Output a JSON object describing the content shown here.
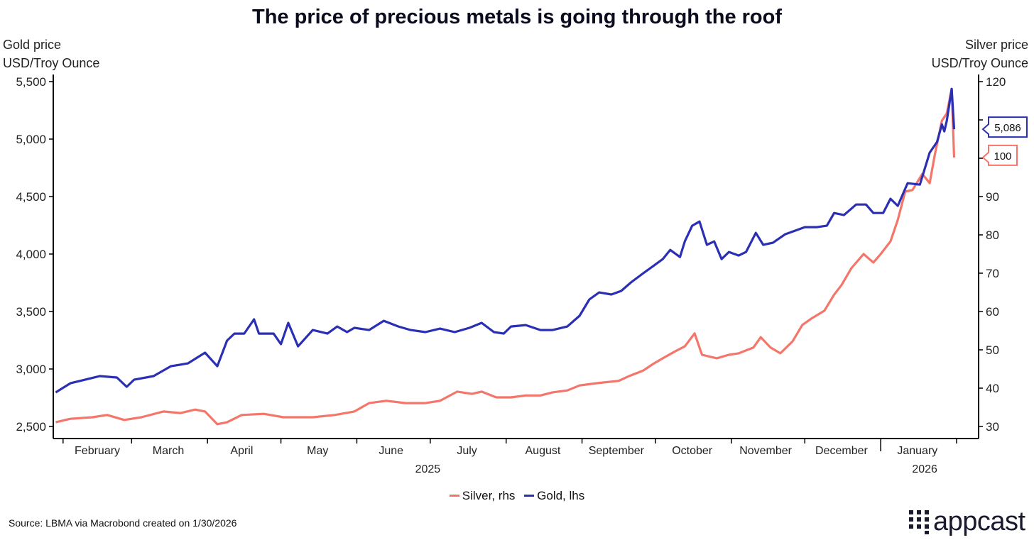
{
  "chart_data": {
    "type": "line",
    "title": "The price of precious metals is going through the roof",
    "ylabel_left": [
      "Gold price",
      "USD/Troy Ounce"
    ],
    "ylabel_right": [
      "Silver price",
      "USD/Troy Ounce"
    ],
    "x_unit": "days since 2025-01-01",
    "xlim": [
      27,
      405
    ],
    "ylim_left": [
      2500,
      5500
    ],
    "ylim_right": [
      30,
      120
    ],
    "yticks_left": [
      "2,500",
      "3,000",
      "3,500",
      "4,000",
      "4,500",
      "5,000",
      "5,500"
    ],
    "yticks_left_values": [
      2500,
      3000,
      3500,
      4000,
      4500,
      5000,
      5500
    ],
    "yticks_right": [
      "30",
      "40",
      "50",
      "60",
      "70",
      "80",
      "90",
      "100",
      "110",
      "120"
    ],
    "yticks_right_values": [
      30,
      40,
      50,
      60,
      70,
      80,
      90,
      100,
      110,
      120
    ],
    "month_boundaries": [
      31,
      59,
      90,
      120,
      151,
      181,
      212,
      243,
      273,
      304,
      334,
      365,
      396
    ],
    "months": [
      {
        "label": "February",
        "day": 45
      },
      {
        "label": "March",
        "day": 74
      },
      {
        "label": "April",
        "day": 104
      },
      {
        "label": "May",
        "day": 135
      },
      {
        "label": "June",
        "day": 165
      },
      {
        "label": "July",
        "day": 196
      },
      {
        "label": "August",
        "day": 227
      },
      {
        "label": "September",
        "day": 257
      },
      {
        "label": "October",
        "day": 288
      },
      {
        "label": "November",
        "day": 318
      },
      {
        "label": "December",
        "day": 349
      },
      {
        "label": "January",
        "day": 380
      }
    ],
    "years": [
      {
        "label": "2025",
        "day": 180
      },
      {
        "label": "2026",
        "day": 383
      }
    ],
    "year_boundary": 365,
    "legend": [
      "Silver, rhs",
      "Gold, lhs"
    ],
    "legend_position": "bottom-center",
    "series": [
      {
        "name": "Silver, rhs",
        "axis": "right",
        "color": "#f4766a",
        "last_label": "100",
        "points": [
          [
            28,
            31.1
          ],
          [
            34,
            32
          ],
          [
            43,
            32.4
          ],
          [
            49,
            33
          ],
          [
            56,
            31.7
          ],
          [
            63,
            32.4
          ],
          [
            72,
            33.9
          ],
          [
            79,
            33.5
          ],
          [
            85,
            34.4
          ],
          [
            89,
            33.9
          ],
          [
            94,
            30.6
          ],
          [
            98,
            31.1
          ],
          [
            104,
            33
          ],
          [
            113,
            33.3
          ],
          [
            121,
            32.4
          ],
          [
            133,
            32.4
          ],
          [
            142,
            33
          ],
          [
            150,
            33.9
          ],
          [
            156,
            36.1
          ],
          [
            163,
            36.7
          ],
          [
            171,
            36.1
          ],
          [
            179,
            36.1
          ],
          [
            185,
            36.7
          ],
          [
            192,
            39.1
          ],
          [
            198,
            38.5
          ],
          [
            202,
            39.1
          ],
          [
            208,
            37.6
          ],
          [
            214,
            37.6
          ],
          [
            220,
            38.1
          ],
          [
            226,
            38.1
          ],
          [
            231,
            38.9
          ],
          [
            237,
            39.4
          ],
          [
            242,
            40.7
          ],
          [
            249,
            41.3
          ],
          [
            258,
            41.9
          ],
          [
            262,
            43.1
          ],
          [
            268,
            44.6
          ],
          [
            272,
            46.3
          ],
          [
            276,
            47.8
          ],
          [
            281,
            49.6
          ],
          [
            285,
            50.9
          ],
          [
            289,
            54.3
          ],
          [
            292,
            48.7
          ],
          [
            298,
            47.8
          ],
          [
            303,
            48.7
          ],
          [
            307,
            49.1
          ],
          [
            313,
            50.6
          ],
          [
            316,
            53.3
          ],
          [
            320,
            50.6
          ],
          [
            324,
            49.1
          ],
          [
            329,
            52.2
          ],
          [
            333,
            56.5
          ],
          [
            337,
            58.3
          ],
          [
            342,
            60.2
          ],
          [
            346,
            64.4
          ],
          [
            349,
            66.9
          ],
          [
            353,
            71.3
          ],
          [
            358,
            75
          ],
          [
            362,
            72.8
          ],
          [
            365,
            75
          ],
          [
            369,
            78.3
          ],
          [
            372,
            83.9
          ],
          [
            375,
            91.3
          ],
          [
            378,
            91.7
          ],
          [
            382,
            95.9
          ],
          [
            385,
            93.5
          ],
          [
            387,
            100.6
          ],
          [
            390,
            109.8
          ],
          [
            392,
            111.7
          ],
          [
            394,
            118.1
          ],
          [
            395,
            100.2
          ]
        ]
      },
      {
        "name": "Gold, lhs",
        "axis": "left",
        "color": "#2a2fb4",
        "last_label": "5,086",
        "points": [
          [
            28,
            2796
          ],
          [
            34,
            2876
          ],
          [
            40,
            2907
          ],
          [
            46,
            2938
          ],
          [
            53,
            2926
          ],
          [
            57,
            2845
          ],
          [
            60,
            2907
          ],
          [
            68,
            2938
          ],
          [
            75,
            3024
          ],
          [
            82,
            3049
          ],
          [
            89,
            3142
          ],
          [
            94,
            3024
          ],
          [
            98,
            3247
          ],
          [
            101,
            3308
          ],
          [
            105,
            3308
          ],
          [
            109,
            3432
          ],
          [
            111,
            3308
          ],
          [
            117,
            3308
          ],
          [
            120,
            3216
          ],
          [
            123,
            3401
          ],
          [
            127,
            3197
          ],
          [
            133,
            3339
          ],
          [
            139,
            3308
          ],
          [
            143,
            3370
          ],
          [
            147,
            3321
          ],
          [
            150,
            3358
          ],
          [
            156,
            3339
          ],
          [
            162,
            3419
          ],
          [
            168,
            3370
          ],
          [
            173,
            3339
          ],
          [
            179,
            3321
          ],
          [
            185,
            3351
          ],
          [
            191,
            3321
          ],
          [
            197,
            3358
          ],
          [
            202,
            3401
          ],
          [
            207,
            3321
          ],
          [
            211,
            3308
          ],
          [
            214,
            3370
          ],
          [
            220,
            3382
          ],
          [
            226,
            3339
          ],
          [
            231,
            3339
          ],
          [
            237,
            3370
          ],
          [
            242,
            3463
          ],
          [
            246,
            3605
          ],
          [
            250,
            3666
          ],
          [
            255,
            3648
          ],
          [
            259,
            3679
          ],
          [
            263,
            3753
          ],
          [
            268,
            3833
          ],
          [
            272,
            3894
          ],
          [
            276,
            3956
          ],
          [
            279,
            4036
          ],
          [
            283,
            3974
          ],
          [
            285,
            4110
          ],
          [
            288,
            4246
          ],
          [
            291,
            4283
          ],
          [
            294,
            4080
          ],
          [
            297,
            4110
          ],
          [
            300,
            3956
          ],
          [
            303,
            4018
          ],
          [
            307,
            3987
          ],
          [
            310,
            4018
          ],
          [
            314,
            4184
          ],
          [
            317,
            4080
          ],
          [
            321,
            4098
          ],
          [
            326,
            4172
          ],
          [
            330,
            4203
          ],
          [
            334,
            4234
          ],
          [
            339,
            4234
          ],
          [
            343,
            4246
          ],
          [
            346,
            4357
          ],
          [
            350,
            4339
          ],
          [
            355,
            4431
          ],
          [
            359,
            4431
          ],
          [
            362,
            4357
          ],
          [
            366,
            4357
          ],
          [
            369,
            4481
          ],
          [
            372,
            4419
          ],
          [
            376,
            4616
          ],
          [
            381,
            4604
          ],
          [
            385,
            4882
          ],
          [
            388,
            4974
          ],
          [
            390,
            5128
          ],
          [
            391,
            5067
          ],
          [
            392,
            5159
          ],
          [
            394,
            5437
          ],
          [
            395,
            5086
          ]
        ]
      }
    ]
  },
  "source": "Source: LBMA via Macrobond created on 1/30/2026",
  "logo": "appcast"
}
